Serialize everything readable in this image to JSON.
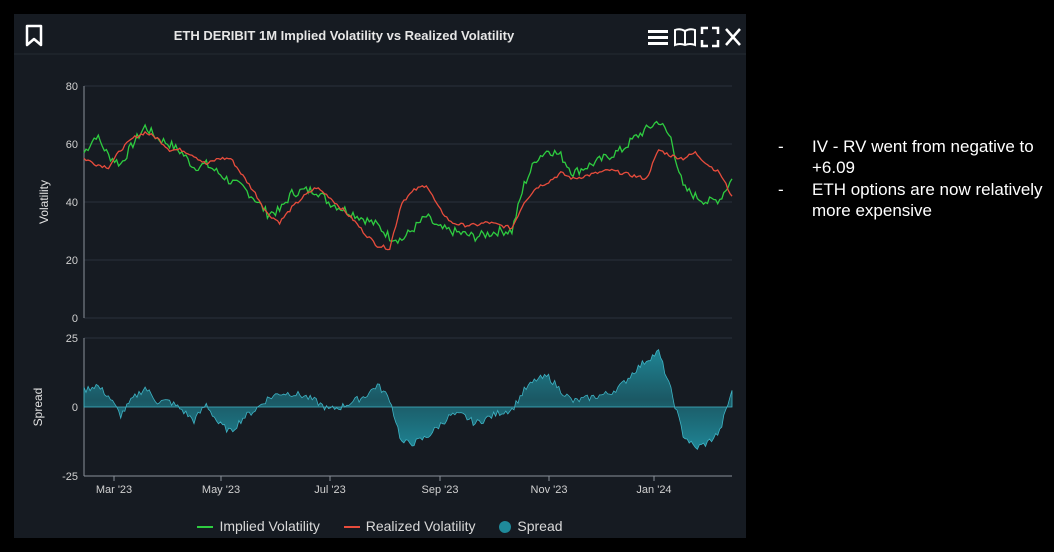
{
  "panel": {
    "title": "ETH DERIBIT 1M Implied Volatility vs Realized Volatility"
  },
  "legend": {
    "items": [
      {
        "label": "Implied Volatility",
        "color": "#2ecc40"
      },
      {
        "label": "Realized Volatility",
        "color": "#e74c3c"
      },
      {
        "label": "Spread",
        "color": "#1f8a9a"
      }
    ]
  },
  "notes": [
    {
      "dash": "-",
      "text": "IV - RV went from negative to +6.09"
    },
    {
      "dash": "-",
      "text": "ETH options are now relatively more expensive"
    }
  ],
  "chart_data": [
    {
      "type": "line",
      "title": "ETH DERIBIT 1M Implied Volatility vs Realized Volatility",
      "ylabel": "Volatility",
      "ylim": [
        0,
        80
      ],
      "yticks": [
        0,
        20,
        40,
        60,
        80
      ],
      "x_tick_labels": [
        "Mar '23",
        "May '23",
        "Jul '23",
        "Sep '23",
        "Nov '23",
        "Jan '24"
      ],
      "x": [
        "2023-02-15",
        "2023-02-22",
        "2023-03-01",
        "2023-03-08",
        "2023-03-15",
        "2023-03-22",
        "2023-03-29",
        "2023-04-05",
        "2023-04-12",
        "2023-04-19",
        "2023-04-26",
        "2023-05-03",
        "2023-05-10",
        "2023-05-17",
        "2023-05-24",
        "2023-05-31",
        "2023-06-07",
        "2023-06-14",
        "2023-06-21",
        "2023-06-28",
        "2023-07-05",
        "2023-07-12",
        "2023-07-19",
        "2023-07-26",
        "2023-08-02",
        "2023-08-09",
        "2023-08-16",
        "2023-08-23",
        "2023-08-30",
        "2023-09-06",
        "2023-09-13",
        "2023-09-20",
        "2023-09-27",
        "2023-10-04",
        "2023-10-11",
        "2023-10-18",
        "2023-10-25",
        "2023-11-01",
        "2023-11-08",
        "2023-11-15",
        "2023-11-22",
        "2023-11-29",
        "2023-12-06",
        "2023-12-13",
        "2023-12-20",
        "2023-12-27",
        "2024-01-03",
        "2024-01-10",
        "2024-01-17",
        "2024-01-24",
        "2024-01-31",
        "2024-02-07",
        "2024-02-14",
        "2024-02-21"
      ],
      "series": [
        {
          "name": "Implied Volatility",
          "color": "#2ecc40",
          "values": [
            57,
            63,
            56,
            53,
            60,
            66,
            62,
            60,
            57,
            52,
            53,
            50,
            47,
            45,
            41,
            36,
            37,
            43,
            44,
            44,
            40,
            38,
            36,
            34,
            32,
            28,
            27,
            31,
            35,
            31,
            30,
            29,
            28,
            29,
            30,
            30,
            46,
            55,
            58,
            56,
            50,
            52,
            54,
            56,
            58,
            62,
            65,
            68,
            62,
            45,
            42,
            40,
            41,
            48
          ]
        },
        {
          "name": "Realized Volatility",
          "color": "#e74c3c",
          "values": [
            55,
            53,
            52,
            58,
            62,
            64,
            62,
            58,
            58,
            56,
            53,
            55,
            55,
            49,
            43,
            36,
            33,
            38,
            42,
            45,
            42,
            38,
            34,
            29,
            25,
            24,
            40,
            44,
            46,
            38,
            33,
            32,
            32,
            33,
            32,
            31,
            40,
            45,
            47,
            50,
            48,
            49,
            50,
            51,
            50,
            49,
            48,
            58,
            56,
            55,
            57,
            53,
            50,
            42
          ]
        }
      ]
    },
    {
      "type": "area",
      "ylabel": "Spread",
      "ylim": [
        -25,
        25
      ],
      "yticks": [
        -25,
        0,
        25
      ],
      "x_tick_labels": [
        "Mar '23",
        "May '23",
        "Jul '23",
        "Sep '23",
        "Nov '23",
        "Jan '24"
      ],
      "series": [
        {
          "name": "Spread",
          "color": "#1f8a9a",
          "values": [
            6,
            8,
            4,
            -3,
            3,
            7,
            2,
            2,
            -1,
            -5,
            1,
            -6,
            -9,
            -4,
            -1,
            3,
            5,
            5,
            4,
            2,
            -1,
            0,
            2,
            4,
            8,
            3,
            -13,
            -13,
            -11,
            -7,
            -3,
            -3,
            -6,
            -4,
            -2,
            -1,
            6,
            10,
            11,
            6,
            2,
            3,
            4,
            5,
            8,
            13,
            17,
            20,
            6,
            -10,
            -15,
            -13,
            -9,
            6
          ]
        }
      ]
    }
  ]
}
